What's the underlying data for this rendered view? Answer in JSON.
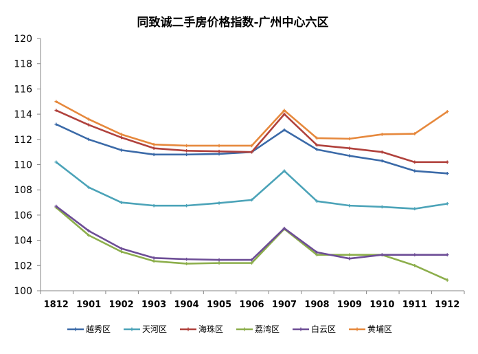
{
  "chart_data": {
    "type": "line",
    "title": "同致诚二手房价格指数-广州中心六区",
    "xlabel": "",
    "ylabel": "",
    "categories": [
      "1812",
      "1901",
      "1902",
      "1903",
      "1904",
      "1905",
      "1906",
      "1907",
      "1908",
      "1909",
      "1910",
      "1911",
      "1912"
    ],
    "ylim": [
      100,
      120
    ],
    "yticks": [
      100,
      102,
      104,
      106,
      108,
      110,
      112,
      114,
      116,
      118,
      120
    ],
    "grid": false,
    "legend_position": "bottom",
    "series": [
      {
        "name": "越秀区",
        "color": "#3B6AA8",
        "values": [
          113.2,
          112.0,
          111.15,
          110.8,
          110.8,
          110.85,
          111.0,
          112.75,
          111.2,
          110.7,
          110.3,
          109.5,
          109.3
        ]
      },
      {
        "name": "天河区",
        "color": "#4BA3B8",
        "values": [
          110.2,
          108.2,
          107.0,
          106.75,
          106.75,
          106.95,
          107.2,
          109.5,
          107.1,
          106.75,
          106.65,
          106.5,
          106.9
        ]
      },
      {
        "name": "海珠区",
        "color": "#B0413C",
        "values": [
          114.3,
          113.15,
          112.15,
          111.3,
          111.1,
          111.05,
          111.0,
          114.0,
          111.55,
          111.3,
          111.0,
          110.2,
          110.2
        ]
      },
      {
        "name": "荔湾区",
        "color": "#8CAE4B",
        "values": [
          106.6,
          104.4,
          103.1,
          102.35,
          102.15,
          102.2,
          102.2,
          104.9,
          102.85,
          102.85,
          102.85,
          102.0,
          100.85
        ]
      },
      {
        "name": "白云区",
        "color": "#6D4D96",
        "values": [
          106.7,
          104.75,
          103.35,
          102.6,
          102.5,
          102.45,
          102.45,
          104.95,
          103.05,
          102.55,
          102.85,
          102.85,
          102.85
        ]
      },
      {
        "name": "黄埔区",
        "color": "#E6883C",
        "values": [
          115.0,
          113.6,
          112.4,
          111.6,
          111.5,
          111.5,
          111.5,
          114.3,
          112.1,
          112.05,
          112.4,
          112.45,
          114.2
        ]
      }
    ]
  }
}
